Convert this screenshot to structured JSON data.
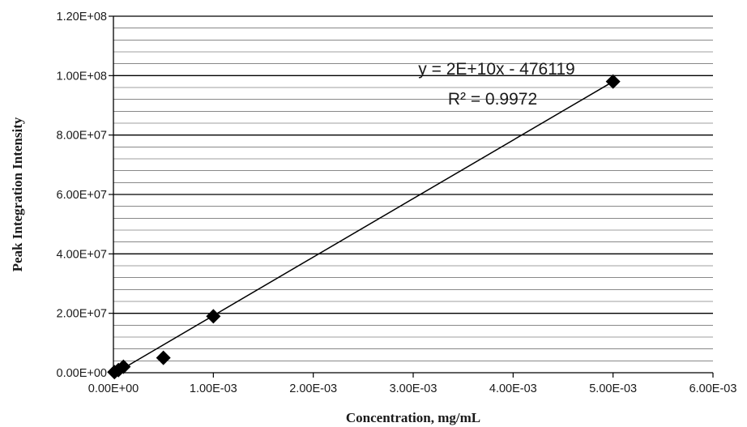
{
  "chart_data": {
    "type": "scatter",
    "xlabel": "Concentration, mg/mL",
    "ylabel": "Peak Integration Intensity",
    "xlim": [
      0,
      0.006
    ],
    "ylim": [
      0,
      120000000
    ],
    "x_ticks": [
      0,
      0.001,
      0.002,
      0.003,
      0.004,
      0.005,
      0.006
    ],
    "x_tick_labels": [
      "0.00E+00",
      "1.00E-03",
      "2.00E-03",
      "3.00E-03",
      "4.00E-03",
      "5.00E-03",
      "6.00E-03"
    ],
    "y_ticks": [
      0,
      20000000,
      40000000,
      60000000,
      80000000,
      100000000,
      120000000
    ],
    "y_tick_labels": [
      "0.00E+00",
      "2.00E+07",
      "4.00E+07",
      "6.00E+07",
      "8.00E+07",
      "1.00E+08",
      "1.20E+08"
    ],
    "grid": true,
    "minor_grid_step": 4000000,
    "marker": "diamond",
    "series": [
      {
        "points": [
          {
            "x": 1e-05,
            "y": 200000
          },
          {
            "x": 5e-05,
            "y": 900000
          },
          {
            "x": 0.0001,
            "y": 2000000
          },
          {
            "x": 0.0005,
            "y": 5000000
          },
          {
            "x": 0.001,
            "y": 19000000
          },
          {
            "x": 0.005,
            "y": 98000000
          }
        ]
      }
    ],
    "trendline": {
      "type": "linear",
      "from": {
        "x": 2.4e-05,
        "y": 0
      },
      "to": {
        "x": 0.005,
        "y": 98000000
      },
      "equation": "y = 2E+10x - 476119",
      "r_squared": "R² = 0.9972"
    },
    "colors": {
      "marker": "#000000",
      "line": "#000000",
      "grid": "#000000"
    }
  }
}
